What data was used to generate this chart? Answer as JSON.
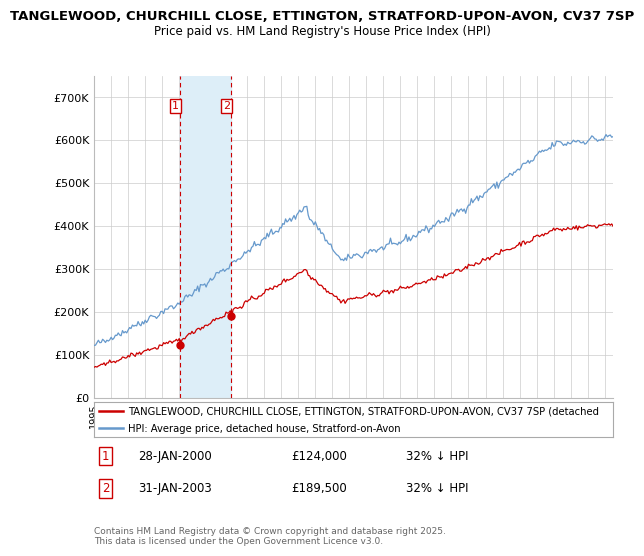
{
  "title_line1": "TANGLEWOOD, CHURCHILL CLOSE, ETTINGTON, STRATFORD-UPON-AVON, CV37 7SP",
  "title_line2": "Price paid vs. HM Land Registry's House Price Index (HPI)",
  "ylim": [
    0,
    750000
  ],
  "ytick_labels": [
    "£0",
    "£100K",
    "£200K",
    "£300K",
    "£400K",
    "£500K",
    "£600K",
    "£700K"
  ],
  "ytick_vals": [
    0,
    100000,
    200000,
    300000,
    400000,
    500000,
    600000,
    700000
  ],
  "red_line_label": "TANGLEWOOD, CHURCHILL CLOSE, ETTINGTON, STRATFORD-UPON-AVON, CV37 7SP (detached",
  "blue_line_label": "HPI: Average price, detached house, Stratford-on-Avon",
  "purchase1_x": 2000.07,
  "purchase1_y": 124000,
  "purchase1_date": "28-JAN-2000",
  "purchase1_price": "£124,000",
  "purchase1_note": "32% ↓ HPI",
  "purchase2_x": 2003.07,
  "purchase2_y": 189500,
  "purchase2_date": "31-JAN-2003",
  "purchase2_price": "£189,500",
  "purchase2_note": "32% ↓ HPI",
  "footer": "Contains HM Land Registry data © Crown copyright and database right 2025.\nThis data is licensed under the Open Government Licence v3.0.",
  "red_color": "#cc0000",
  "blue_color": "#6699cc",
  "shading_color": "#ddeef8",
  "background_color": "#ffffff",
  "grid_color": "#cccccc",
  "xmin": 1995,
  "xmax": 2025.5
}
